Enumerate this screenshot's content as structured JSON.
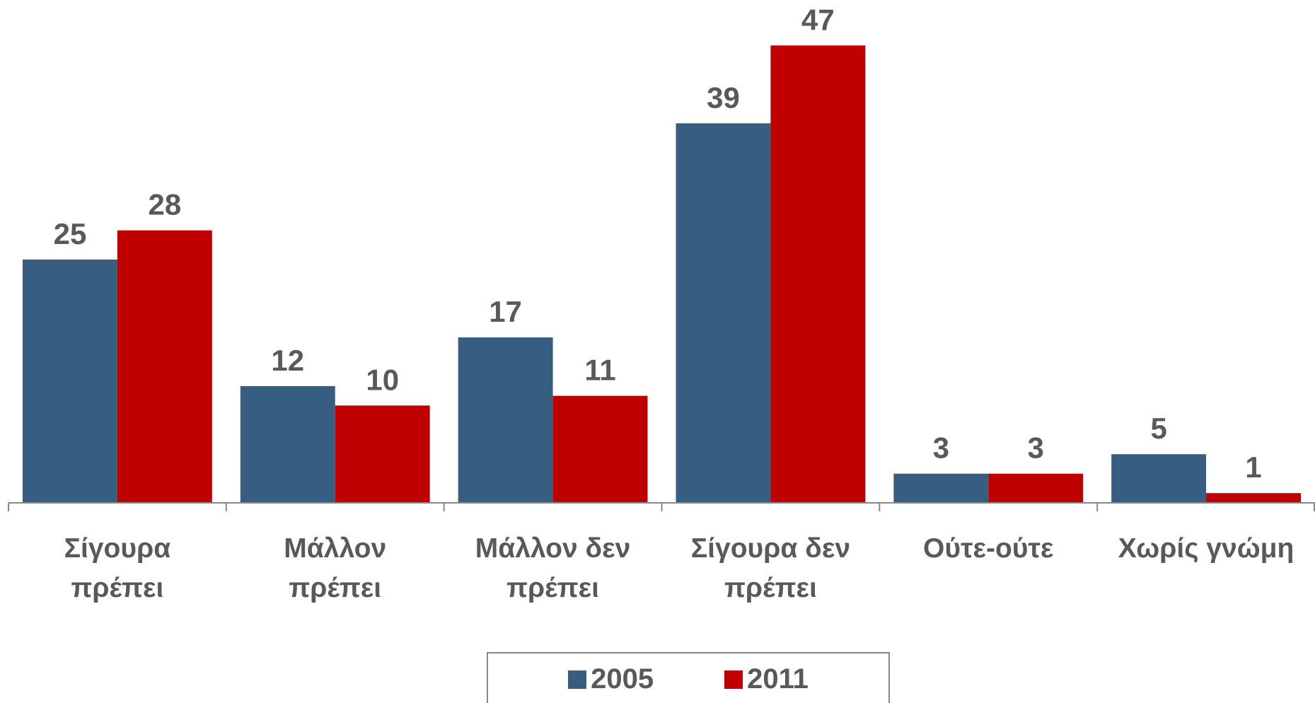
{
  "chart_data": {
    "type": "bar",
    "categories": [
      "Σίγουρα πρέπει",
      "Μάλλον πρέπει",
      "Μάλλον δεν πρέπει",
      "Σίγουρα δεν πρέπει",
      "Ούτε-ούτε",
      "Χωρίς γνώμη"
    ],
    "series": [
      {
        "name": "2005",
        "color": "#375e80",
        "values": [
          25,
          12,
          17,
          39,
          3,
          5
        ]
      },
      {
        "name": "2011",
        "color": "#c00000",
        "values": [
          28,
          10,
          11,
          47,
          3,
          1
        ]
      }
    ],
    "ylim": [
      0,
      50
    ]
  }
}
